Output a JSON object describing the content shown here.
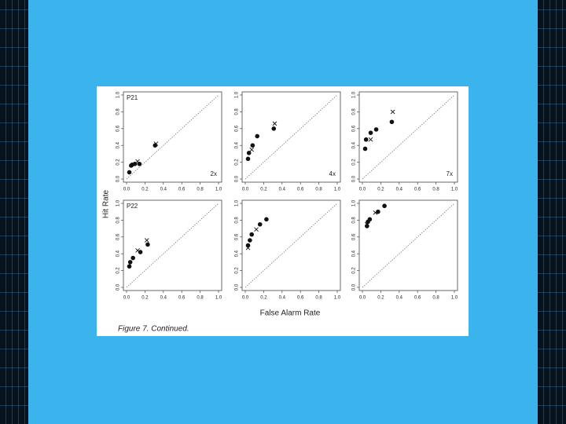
{
  "chart_data": [
    {
      "type": "scatter",
      "title": "P21",
      "annotation": "2x",
      "xlim": [
        0,
        1
      ],
      "ylim": [
        0,
        1
      ],
      "xticks": [
        {
          "value": 0,
          "label": "0.0"
        },
        0.2,
        0.4,
        0.6,
        0.8,
        {
          "value": 1,
          "label": "1.0"
        }
      ],
      "yticks": [
        {
          "value": 0,
          "label": "0.0"
        },
        0.2,
        0.4,
        0.6,
        0.8,
        {
          "value": 1,
          "label": "1.0"
        }
      ],
      "series": [
        {
          "marker": "dot",
          "color": "#111111",
          "x": [
            0.03,
            0.05,
            0.06,
            0.09,
            0.14,
            0.31
          ],
          "values": [
            0.08,
            0.16,
            0.17,
            0.18,
            0.18,
            0.4
          ]
        },
        {
          "marker": "x",
          "color": "#111111",
          "x": [
            0.12,
            0.32
          ],
          "values": [
            0.21,
            0.42
          ]
        }
      ]
    },
    {
      "type": "scatter",
      "annotation": "4x",
      "xlim": [
        0,
        1
      ],
      "ylim": [
        0,
        1
      ],
      "xticks": [
        {
          "value": 0,
          "label": "0.0"
        },
        0.2,
        0.4,
        0.6,
        0.8,
        {
          "value": 1,
          "label": "1.0"
        }
      ],
      "yticks": [
        {
          "value": 0,
          "label": "0.0"
        },
        0.2,
        0.4,
        0.6,
        0.8,
        {
          "value": 1,
          "label": "1.0"
        }
      ],
      "series": [
        {
          "marker": "dot",
          "color": "#111111",
          "x": [
            0.03,
            0.04,
            0.08,
            0.13,
            0.31
          ],
          "values": [
            0.24,
            0.31,
            0.4,
            0.51,
            0.6
          ]
        },
        {
          "marker": "x",
          "color": "#111111",
          "x": [
            0.07,
            0.32
          ],
          "values": [
            0.35,
            0.66
          ]
        }
      ]
    },
    {
      "type": "scatter",
      "annotation": "7x",
      "xlim": [
        0,
        1
      ],
      "ylim": [
        0,
        1
      ],
      "xticks": [
        {
          "value": 0,
          "label": "0.0"
        },
        0.2,
        0.4,
        0.6,
        0.8,
        {
          "value": 1,
          "label": "1.0"
        }
      ],
      "yticks": [
        {
          "value": 0,
          "label": "0.0"
        },
        0.2,
        0.4,
        0.6,
        0.8,
        {
          "value": 1,
          "label": "1.0"
        }
      ],
      "series": [
        {
          "marker": "dot",
          "color": "#111111",
          "x": [
            0.03,
            0.04,
            0.09,
            0.15,
            0.32
          ],
          "values": [
            0.36,
            0.47,
            0.55,
            0.59,
            0.68
          ]
        },
        {
          "marker": "x",
          "color": "#111111",
          "x": [
            0.09,
            0.33
          ],
          "values": [
            0.47,
            0.8
          ]
        }
      ]
    },
    {
      "type": "scatter",
      "title": "P22",
      "xlim": [
        0,
        1
      ],
      "ylim": [
        0,
        1
      ],
      "xticks": [
        {
          "value": 0,
          "label": "0.0"
        },
        0.2,
        0.4,
        0.6,
        0.8,
        {
          "value": 1,
          "label": "1.0"
        }
      ],
      "yticks": [
        {
          "value": 0,
          "label": "0.0"
        },
        0.2,
        0.4,
        0.6,
        0.8,
        {
          "value": 1,
          "label": "1.0"
        }
      ],
      "series": [
        {
          "marker": "dot",
          "color": "#111111",
          "x": [
            0.03,
            0.04,
            0.07,
            0.15,
            0.23
          ],
          "values": [
            0.25,
            0.3,
            0.35,
            0.42,
            0.51
          ]
        },
        {
          "marker": "x",
          "color": "#111111",
          "x": [
            0.12,
            0.22
          ],
          "values": [
            0.44,
            0.56
          ]
        }
      ]
    },
    {
      "type": "scatter",
      "xlim": [
        0,
        1
      ],
      "ylim": [
        0,
        1
      ],
      "xticks": [
        {
          "value": 0,
          "label": "0.0"
        },
        0.2,
        0.4,
        0.6,
        0.8,
        {
          "value": 1,
          "label": "1.0"
        }
      ],
      "yticks": [
        {
          "value": 0,
          "label": "0.0"
        },
        0.2,
        0.4,
        0.6,
        0.8,
        {
          "value": 1,
          "label": "1.0"
        }
      ],
      "series": [
        {
          "marker": "dot",
          "color": "#111111",
          "x": [
            0.03,
            0.05,
            0.07,
            0.16,
            0.23
          ],
          "values": [
            0.5,
            0.56,
            0.63,
            0.75,
            0.81
          ]
        },
        {
          "marker": "x",
          "color": "#111111",
          "x": [
            0.03,
            0.12
          ],
          "values": [
            0.47,
            0.69
          ]
        }
      ]
    },
    {
      "type": "scatter",
      "xlim": [
        0,
        1
      ],
      "ylim": [
        0,
        1
      ],
      "xticks": [
        {
          "value": 0,
          "label": "0.0"
        },
        0.2,
        0.4,
        0.6,
        0.8,
        {
          "value": 1,
          "label": "1.0"
        }
      ],
      "yticks": [
        {
          "value": 0,
          "label": "0.0"
        },
        0.2,
        0.4,
        0.6,
        0.8,
        {
          "value": 1,
          "label": "1.0"
        }
      ],
      "series": [
        {
          "marker": "dot",
          "color": "#111111",
          "x": [
            0.05,
            0.06,
            0.08,
            0.17,
            0.24
          ],
          "values": [
            0.73,
            0.78,
            0.81,
            0.9,
            0.97
          ]
        },
        {
          "marker": "x",
          "color": "#111111",
          "x": [
            0.05,
            0.14
          ],
          "values": [
            0.75,
            0.89
          ]
        }
      ]
    }
  ],
  "figure": {
    "ylabel": "Hit Rate",
    "xlabel": "False Alarm Rate",
    "caption": "Figure 7. Continued."
  }
}
